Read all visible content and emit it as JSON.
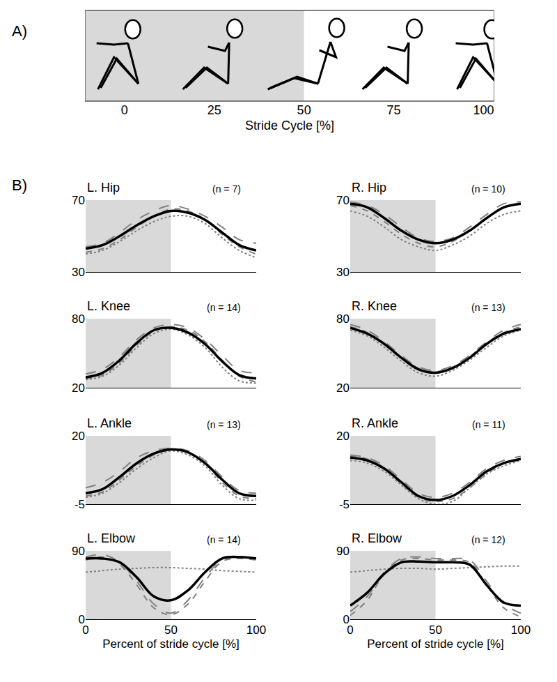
{
  "panel_labels": [
    "A)",
    "B)"
  ],
  "chart_data": [
    {
      "type": "diagram",
      "xlabel": "Stride Cycle [%]",
      "xlim": [
        -11,
        103
      ],
      "xticks": [
        0,
        25,
        50,
        75,
        100
      ],
      "shaded_region": [
        -11,
        50
      ]
    },
    {
      "type": "line",
      "title": "L. Hip",
      "subtitle": "(n = 7)",
      "tick_labels": "y",
      "x": [
        0,
        10,
        20,
        30,
        40,
        50,
        60,
        70,
        80,
        90,
        100
      ],
      "xlim": [
        0,
        100
      ],
      "ylim": [
        30,
        70
      ],
      "yticks": [
        30,
        70
      ],
      "shaded_region": [
        0,
        50
      ],
      "series": [
        {
          "color": "#000000",
          "line_style": "solid",
          "values": [
            43,
            45,
            50,
            56,
            61,
            64,
            63,
            59,
            52,
            45,
            42
          ]
        },
        {
          "color": "#808080",
          "line_style": "longdash",
          "values": [
            44,
            46,
            52,
            59,
            64,
            67,
            65,
            61,
            55,
            48,
            46
          ]
        },
        {
          "color": "#808080",
          "line_style": "dashed",
          "values": [
            41,
            43,
            48,
            55,
            61,
            65,
            64,
            59,
            51,
            44,
            40
          ]
        },
        {
          "color": "#808080",
          "line_style": "dotted",
          "values": [
            40,
            42,
            47,
            53,
            58,
            61,
            61,
            57,
            49,
            42,
            38
          ]
        }
      ]
    },
    {
      "type": "line",
      "title": "R. Hip",
      "subtitle": "(n = 10)",
      "tick_labels": "y",
      "x": [
        0,
        10,
        20,
        30,
        40,
        50,
        60,
        70,
        80,
        90,
        100
      ],
      "xlim": [
        0,
        100
      ],
      "ylim": [
        30,
        70
      ],
      "yticks": [
        30,
        70
      ],
      "shaded_region": [
        0,
        50
      ],
      "series": [
        {
          "color": "#000000",
          "line_style": "solid",
          "values": [
            68,
            66,
            60,
            53,
            48,
            46,
            48,
            53,
            60,
            66,
            68
          ]
        },
        {
          "color": "#808080",
          "line_style": "longdash",
          "values": [
            69,
            67,
            62,
            55,
            49,
            47,
            49,
            55,
            62,
            68,
            69
          ]
        },
        {
          "color": "#808080",
          "line_style": "dashed",
          "values": [
            67,
            64,
            58,
            51,
            46,
            44,
            47,
            53,
            60,
            66,
            68
          ]
        },
        {
          "color": "#808080",
          "line_style": "dotted",
          "values": [
            64,
            61,
            55,
            48,
            44,
            42,
            45,
            50,
            57,
            62,
            64
          ]
        }
      ]
    },
    {
      "type": "line",
      "title": "L. Knee",
      "subtitle": "(n = 14)",
      "tick_labels": "y",
      "x": [
        0,
        10,
        20,
        30,
        40,
        50,
        60,
        70,
        80,
        90,
        100
      ],
      "xlim": [
        0,
        100
      ],
      "ylim": [
        20,
        80
      ],
      "yticks": [
        20,
        80
      ],
      "shaded_region": [
        0,
        50
      ],
      "series": [
        {
          "color": "#000000",
          "line_style": "solid",
          "values": [
            29,
            33,
            44,
            59,
            70,
            72,
            68,
            58,
            43,
            31,
            28
          ]
        },
        {
          "color": "#808080",
          "line_style": "longdash",
          "values": [
            32,
            36,
            47,
            62,
            72,
            75,
            72,
            62,
            48,
            35,
            33
          ]
        },
        {
          "color": "#808080",
          "line_style": "dashed",
          "values": [
            28,
            31,
            42,
            57,
            69,
            73,
            70,
            60,
            44,
            30,
            25
          ]
        },
        {
          "color": "#808080",
          "line_style": "dotted",
          "values": [
            27,
            30,
            40,
            55,
            67,
            71,
            66,
            55,
            38,
            26,
            24
          ]
        }
      ]
    },
    {
      "type": "line",
      "title": "R. Knee",
      "subtitle": "(n = 13)",
      "tick_labels": "y",
      "x": [
        0,
        10,
        20,
        30,
        40,
        50,
        60,
        70,
        80,
        90,
        100
      ],
      "xlim": [
        0,
        100
      ],
      "ylim": [
        20,
        80
      ],
      "yticks": [
        20,
        80
      ],
      "shaded_region": [
        0,
        50
      ],
      "series": [
        {
          "color": "#000000",
          "line_style": "solid",
          "values": [
            72,
            67,
            58,
            46,
            36,
            33,
            37,
            46,
            58,
            67,
            71
          ]
        },
        {
          "color": "#808080",
          "line_style": "longdash",
          "values": [
            75,
            70,
            60,
            48,
            38,
            35,
            39,
            48,
            60,
            70,
            75
          ]
        },
        {
          "color": "#808080",
          "line_style": "dashed",
          "values": [
            73,
            68,
            58,
            46,
            37,
            34,
            38,
            47,
            59,
            68,
            73
          ]
        },
        {
          "color": "#808080",
          "line_style": "dotted",
          "values": [
            70,
            65,
            55,
            43,
            33,
            30,
            35,
            44,
            55,
            65,
            70
          ]
        }
      ]
    },
    {
      "type": "line",
      "title": "L. Ankle",
      "subtitle": "(n = 13)",
      "tick_labels": "y",
      "x": [
        0,
        10,
        20,
        30,
        40,
        50,
        60,
        70,
        80,
        90,
        100
      ],
      "xlim": [
        0,
        100
      ],
      "ylim": [
        -5,
        20
      ],
      "yticks": [
        -5,
        20
      ],
      "shaded_region": [
        0,
        50
      ],
      "series": [
        {
          "color": "#000000",
          "line_style": "solid",
          "values": [
            -1,
            0.5,
            5,
            10,
            13.5,
            15,
            14,
            10,
            4,
            -1,
            -2
          ]
        },
        {
          "color": "#808080",
          "line_style": "longdash",
          "values": [
            1,
            3,
            7,
            12,
            14.5,
            15.5,
            14.5,
            11,
            5,
            0,
            -1
          ]
        },
        {
          "color": "#808080",
          "line_style": "dashed",
          "values": [
            -2,
            -0.5,
            4,
            9,
            13,
            15,
            14,
            10,
            3,
            -2,
            -3
          ]
        },
        {
          "color": "#808080",
          "line_style": "dotted",
          "values": [
            -2.5,
            -1,
            3,
            8,
            12,
            14.5,
            13,
            9,
            2,
            -3,
            -3.5
          ]
        }
      ]
    },
    {
      "type": "line",
      "title": "R. Ankle",
      "subtitle": "(n = 11)",
      "tick_labels": "y",
      "x": [
        0,
        10,
        20,
        30,
        40,
        50,
        60,
        70,
        80,
        90,
        100
      ],
      "xlim": [
        0,
        100
      ],
      "ylim": [
        -5,
        20
      ],
      "yticks": [
        -5,
        20
      ],
      "shaded_region": [
        0,
        50
      ],
      "series": [
        {
          "color": "#000000",
          "line_style": "solid",
          "values": [
            12,
            11,
            8,
            3,
            -2,
            -3.5,
            -2,
            2,
            7,
            10,
            11.5
          ]
        },
        {
          "color": "#808080",
          "line_style": "longdash",
          "values": [
            13,
            12,
            9,
            4,
            -1,
            -2.5,
            -1,
            3,
            8,
            11,
            12.5
          ]
        },
        {
          "color": "#808080",
          "line_style": "dashed",
          "values": [
            12.5,
            11.5,
            8,
            2.5,
            -2.5,
            -4,
            -3,
            1,
            6,
            10,
            11
          ]
        },
        {
          "color": "#808080",
          "line_style": "dotted",
          "values": [
            11,
            10,
            7,
            2,
            -3,
            -5,
            -4,
            1,
            6,
            9,
            11
          ]
        }
      ]
    },
    {
      "type": "line",
      "title": "L. Elbow",
      "subtitle": "(n = 14)",
      "xlabel": "Percent of stride cycle [%]",
      "x": [
        0,
        10,
        20,
        30,
        40,
        50,
        60,
        70,
        80,
        90,
        100
      ],
      "xlim": [
        0,
        100
      ],
      "xticks": [
        0,
        50,
        100
      ],
      "ylim": [
        0,
        90
      ],
      "yticks": [
        0,
        90
      ],
      "shaded_region": [
        0,
        50
      ],
      "series": [
        {
          "color": "#000000",
          "line_style": "solid",
          "values": [
            80,
            80,
            75,
            55,
            30,
            25,
            38,
            62,
            80,
            82,
            80
          ]
        },
        {
          "color": "#808080",
          "line_style": "longdash",
          "values": [
            82,
            85,
            75,
            50,
            20,
            8,
            25,
            55,
            78,
            82,
            80
          ]
        },
        {
          "color": "#808080",
          "line_style": "dashed",
          "values": [
            78,
            82,
            72,
            45,
            15,
            6,
            20,
            50,
            76,
            80,
            78
          ]
        },
        {
          "color": "#808080",
          "line_style": "dotted",
          "values": [
            62,
            64,
            66,
            67,
            68,
            68,
            67,
            66,
            64,
            63,
            62
          ]
        }
      ]
    },
    {
      "type": "line",
      "title": "R. Elbow",
      "subtitle": "(n = 12)",
      "xlabel": "Percent of stride cycle [%]",
      "x": [
        0,
        10,
        20,
        30,
        40,
        50,
        60,
        70,
        80,
        90,
        100
      ],
      "xlim": [
        0,
        100
      ],
      "xticks": [
        0,
        50,
        100
      ],
      "ylim": [
        0,
        90
      ],
      "yticks": [
        0,
        90
      ],
      "shaded_region": [
        0,
        50
      ],
      "series": [
        {
          "color": "#000000",
          "line_style": "solid",
          "values": [
            18,
            35,
            60,
            75,
            76,
            75,
            75,
            72,
            45,
            22,
            18
          ]
        },
        {
          "color": "#808080",
          "line_style": "longdash",
          "values": [
            10,
            30,
            62,
            80,
            82,
            80,
            80,
            78,
            50,
            20,
            8
          ]
        },
        {
          "color": "#808080",
          "line_style": "dashed",
          "values": [
            5,
            25,
            60,
            78,
            80,
            78,
            78,
            75,
            45,
            15,
            3
          ]
        },
        {
          "color": "#808080",
          "line_style": "dotted",
          "values": [
            62,
            64,
            66,
            67,
            67,
            66,
            67,
            68,
            69,
            70,
            70
          ]
        }
      ]
    }
  ]
}
